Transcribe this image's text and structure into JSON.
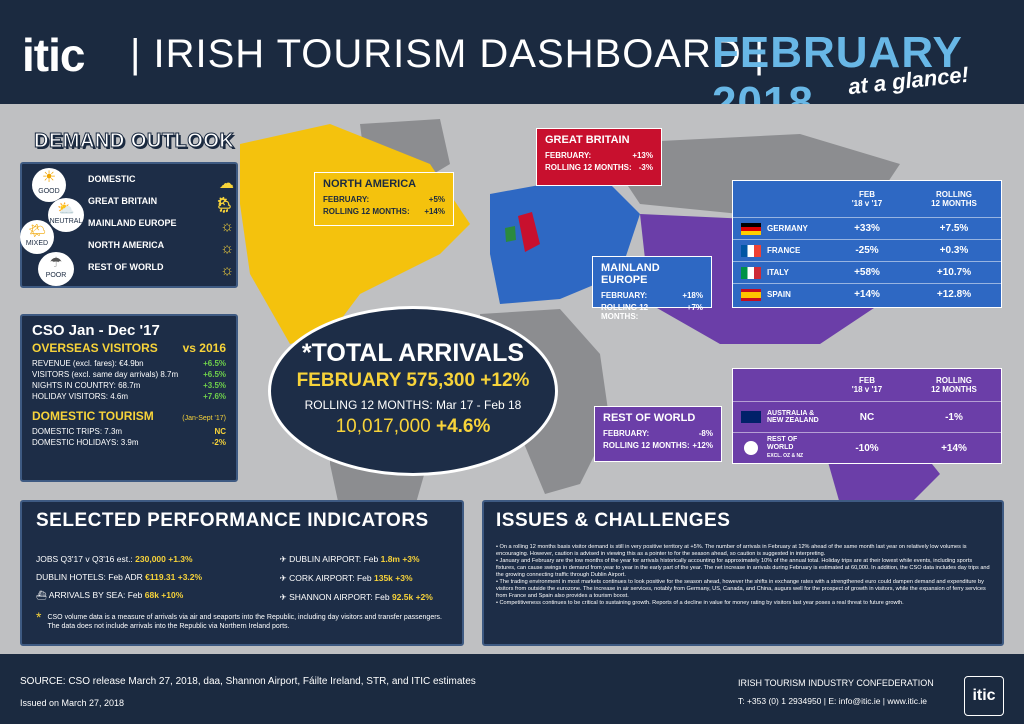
{
  "header": {
    "logo": "itic",
    "logo_dot": "i",
    "title": "|  IRISH TOURISM DASHBOARD  |",
    "date": "FEBRUARY 2018",
    "subtitle": "at a glance!"
  },
  "demand": {
    "title": "DEMAND OUTLOOK",
    "legend": [
      "GOOD",
      "NEUTRAL",
      "MIXED",
      "POOR"
    ],
    "items": [
      "DOMESTIC",
      "GREAT BRITAIN",
      "MAINLAND EUROPE",
      "NORTH AMERICA",
      "REST OF WORLD"
    ]
  },
  "cso": {
    "title": "CSO Jan - Dec '17",
    "overseas": "OVERSEAS VISITORS",
    "vs": "vs 2016",
    "rows": [
      [
        "REVENUE (excl. fares): €4.9bn",
        "+6.5%"
      ],
      [
        "VISITORS (excl. same day arrivals) 8.7m",
        "+6.5%"
      ],
      [
        "NIGHTS IN COUNTRY: 68.7m",
        "+3.5%"
      ],
      [
        "HOLIDAY VISITORS: 4.6m",
        "+7.6%"
      ]
    ],
    "domestic": "DOMESTIC TOURISM",
    "dom_period": "(Jan-Sept '17)",
    "drows": [
      [
        "DOMESTIC TRIPS: 7.3m",
        "NC"
      ],
      [
        "DOMESTIC HOLIDAYS: 3.9m",
        "-2%"
      ]
    ]
  },
  "na": {
    "title": "NORTH AMERICA",
    "feb_label": "FEBRUARY:",
    "feb": "+5%",
    "roll_label": "ROLLING 12 MONTHS:",
    "roll": "+14%"
  },
  "gb": {
    "title": "GREAT BRITAIN",
    "feb_label": "FEBRUARY:",
    "feb": "+13%",
    "roll_label": "ROLLING 12 MONTHS:",
    "roll": "-3%"
  },
  "me": {
    "title": "MAINLAND EUROPE",
    "feb_label": "FEBRUARY:",
    "feb": "+18%",
    "roll_label": "ROLLING 12 MONTHS:",
    "roll": "+7%"
  },
  "row": {
    "title": "REST OF WORLD",
    "feb_label": "FEBRUARY:",
    "feb": "-8%",
    "roll_label": "ROLLING 12 MONTHS:",
    "roll": "+12%"
  },
  "europe_table": {
    "col1": "FEB",
    "col1b": "'18 v '17",
    "col2": "ROLLING",
    "col2b": "12 MONTHS",
    "rows": [
      {
        "name": "GERMANY",
        "feb": "+33%",
        "roll": "+7.5%"
      },
      {
        "name": "FRANCE",
        "feb": "-25%",
        "roll": "+0.3%"
      },
      {
        "name": "ITALY",
        "feb": "+58%",
        "roll": "+10.7%"
      },
      {
        "name": "SPAIN",
        "feb": "+14%",
        "roll": "+12.8%"
      }
    ]
  },
  "row_table": {
    "col1": "FEB",
    "col1b": "'18 v '17",
    "col2": "ROLLING",
    "col2b": "12 MONTHS",
    "rows": [
      {
        "name": "AUSTRALIA & NEW ZEALAND",
        "sub": "",
        "feb": "NC",
        "roll": "-1%"
      },
      {
        "name": "REST OF WORLD",
        "sub": "EXCL. OZ & NZ",
        "feb": "-10%",
        "roll": "+14%"
      }
    ]
  },
  "total": {
    "title": "*TOTAL ARRIVALS",
    "feb": "FEBRUARY 575,300 +12%",
    "rolling": "ROLLING 12 MONTHS: Mar 17 - Feb 18",
    "rolling_val": "10,017,000",
    "rolling_pct": "+4.6%"
  },
  "spi": {
    "title": "SELECTED PERFORMANCE INDICATORS",
    "left": [
      [
        "JOBS Q3'17 v Q3'16 est.: ",
        "230,000 +1.3%"
      ],
      [
        "DUBLIN HOTELS: Feb ADR ",
        "€119.31 +3.2%"
      ],
      [
        "ARRIVALS BY SEA: Feb ",
        "68k +10%"
      ]
    ],
    "right": [
      [
        "DUBLIN AIRPORT:  Feb ",
        "1.8m +3%"
      ],
      [
        "CORK AIRPORT:  Feb ",
        "135k +3%"
      ],
      [
        "SHANNON AIRPORT:  Feb ",
        "92.5k +2%"
      ]
    ],
    "note": "CSO volume data is a measure of arrivals via air and seaports into the Republic, including day visitors and transfer passengers. The data does not include arrivals into the Republic via Northern Ireland ports."
  },
  "issues": {
    "title": "ISSUES & CHALLENGES",
    "bullets": [
      "On a rolling 12 months basis visitor demand is still in very positive territory at +5%. The number of arrivals in February at 12% ahead of the same month last year on relatively low volumes is encouraging. However, caution is advised in viewing this as a pointer to for the season ahead, so caution is suggested in interpreting.",
      "January and February are the low months of the year for arrivals historically accounting for approximately 10% of the annual total. Holiday trips are at their lowest while events, including sports fixtures, can cause swings in demand from year to year in the early part of the year. The net increase in arrivals during February is estimated at 60,000. In addition, the CSO data includes day trips and the growing connecting traffic through Dublin Airport.",
      "The trading environment in most markets continues to look positive for the season ahead, however the shifts in exchange rates with a strengthened euro could dampen demand and expenditure by visitors from outside the eurozone. The increase in air services, notably from Germany, US, Canada, and China, augurs well for the prospect of growth in visitors, while the expansion of ferry services from France and Spain also provides a tourism boost.",
      "Competitiveness continues to be critical to sustaining growth. Reports of a decline in value for money rating by visitors last year poses a real threat to future growth."
    ]
  },
  "footer": {
    "source": "SOURCE: CSO release March 27, 2018, daa, Shannon Airport, Fáilte Ireland, STR, and ITIC estimates",
    "issued": "Issued on March 27, 2018",
    "org": "IRISH TOURISM INDUSTRY CONFEDERATION",
    "contact": "T: +353 (0) 1 2934950 | E: info@itic.ie | www.itic.ie",
    "logo": "itic"
  },
  "colors": {
    "navy": "#1b2a40",
    "na": "#f4c20d",
    "gb": "#c8102e",
    "europe": "#2e68c3",
    "row": "#6b3ea8",
    "green": "#6fd14b"
  }
}
